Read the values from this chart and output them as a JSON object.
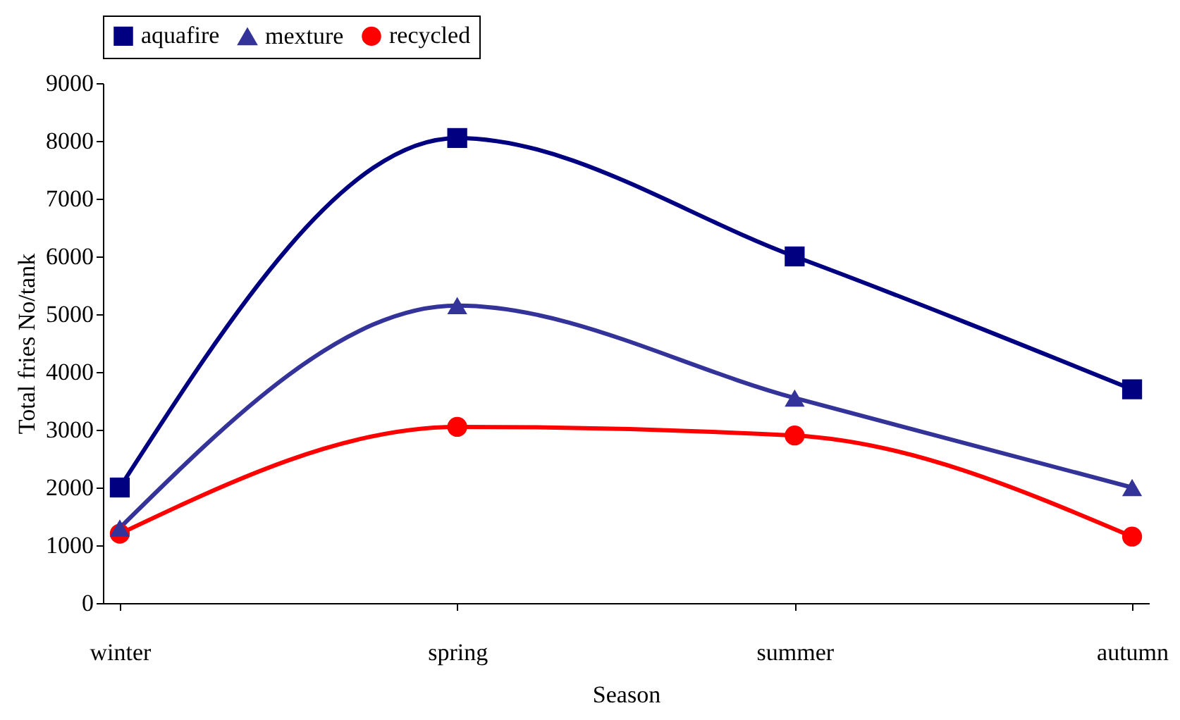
{
  "chart_data": {
    "type": "line",
    "xlabel": "Season",
    "ylabel": "Total fries No/tank",
    "categories": [
      "winter",
      "spring",
      "summer",
      "autumn"
    ],
    "series": [
      {
        "name": "aquafire",
        "color": "#000080",
        "marker": "square",
        "values": [
          2000,
          8050,
          6000,
          3700
        ]
      },
      {
        "name": "mexture",
        "color": "#333399",
        "marker": "triangle",
        "values": [
          1300,
          5150,
          3550,
          2000
        ]
      },
      {
        "name": "recycled",
        "color": "#ff0000",
        "marker": "circle",
        "values": [
          1200,
          3050,
          2900,
          1150
        ]
      }
    ],
    "ylim": [
      0,
      9000
    ],
    "yticks": [
      0,
      1000,
      2000,
      3000,
      4000,
      5000,
      6000,
      7000,
      8000,
      9000
    ],
    "grid": false,
    "legend": "top",
    "line_style": "solid"
  }
}
